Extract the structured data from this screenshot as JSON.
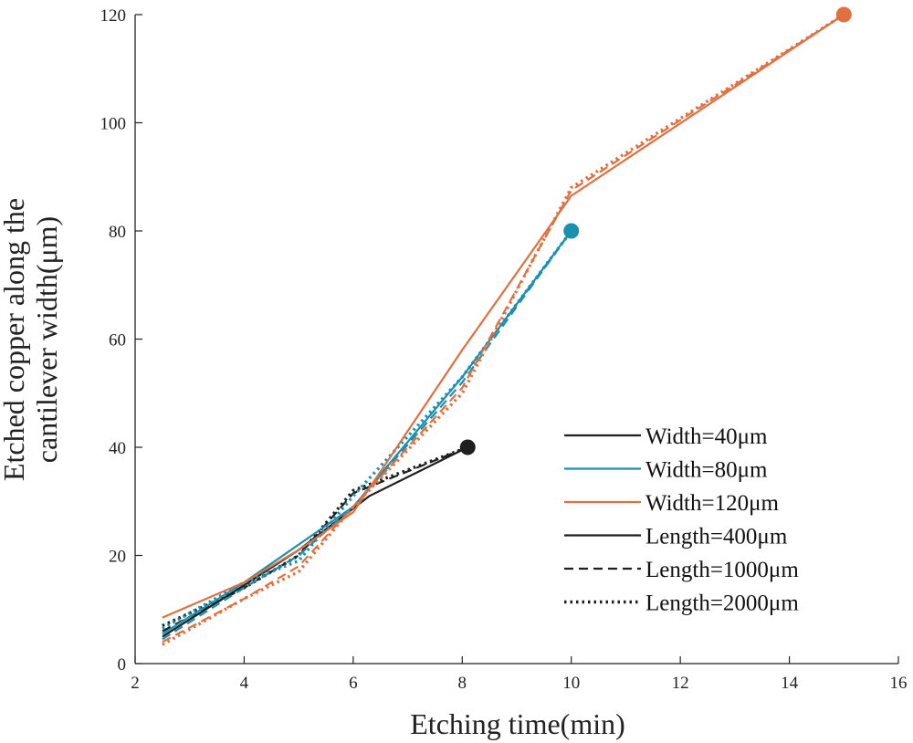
{
  "chart_data": {
    "type": "line",
    "title": "",
    "xlabel": "Etching time(min)",
    "ylabel_lines": [
      "Etched copper along the",
      "cantilever width(μm)"
    ],
    "xlim": [
      2,
      16
    ],
    "ylim": [
      0,
      120
    ],
    "xticks": [
      2,
      4,
      6,
      8,
      10,
      12,
      14,
      16
    ],
    "yticks": [
      0,
      20,
      40,
      60,
      80,
      100,
      120
    ],
    "xtick_labels": [
      "2",
      "4",
      "6",
      "8",
      "10",
      "12",
      "14",
      "16"
    ],
    "ytick_labels": [
      "0",
      "20",
      "40",
      "60",
      "80",
      "100",
      "120"
    ],
    "grid": false,
    "legend_position": "bottom-right",
    "colors": {
      "w40": "#1f1f1f",
      "w80": "#1a8fb0",
      "w120": "#e07040"
    },
    "legend": [
      {
        "label": "Width=40μm",
        "color": "#1f1f1f",
        "dash": "solid"
      },
      {
        "label": "Width=80μm",
        "color": "#1a8fb0",
        "dash": "solid"
      },
      {
        "label": "Width=120μm",
        "color": "#e07040",
        "dash": "solid"
      },
      {
        "label": "Length=400μm",
        "color": "#1f1f1f",
        "dash": "solid"
      },
      {
        "label": "Length=1000μm",
        "color": "#1f1f1f",
        "dash": "dashed"
      },
      {
        "label": "Length=2000μm",
        "color": "#1f1f1f",
        "dash": "dotted"
      }
    ],
    "series": [
      {
        "group": "w40",
        "length": "400",
        "dash": "solid",
        "x": [
          2.5,
          4,
          5,
          6.3,
          8.1
        ],
        "y": [
          5,
          14.5,
          21,
          31,
          40
        ]
      },
      {
        "group": "w40",
        "length": "1000",
        "dash": "dashed",
        "x": [
          2.5,
          4,
          5,
          6,
          8.1
        ],
        "y": [
          6,
          14,
          20,
          31.5,
          40
        ]
      },
      {
        "group": "w40",
        "length": "2000",
        "dash": "dotted",
        "x": [
          2.5,
          4,
          5,
          6,
          8.1
        ],
        "y": [
          7,
          14,
          20,
          32,
          40
        ]
      },
      {
        "group": "w80",
        "length": "400",
        "dash": "solid",
        "x": [
          2.5,
          4,
          5,
          6,
          8,
          10
        ],
        "y": [
          5.5,
          15,
          22,
          29,
          53,
          80
        ]
      },
      {
        "group": "w80",
        "length": "1000",
        "dash": "dashed",
        "x": [
          2.5,
          4,
          5,
          6,
          8,
          10
        ],
        "y": [
          4.5,
          14,
          20,
          29,
          52,
          80
        ]
      },
      {
        "group": "w80",
        "length": "2000",
        "dash": "dotted",
        "x": [
          2.5,
          4,
          5,
          6,
          8,
          10
        ],
        "y": [
          6.5,
          15,
          19,
          31,
          53,
          80
        ]
      },
      {
        "group": "w120",
        "length": "400",
        "dash": "solid",
        "x": [
          2.5,
          4,
          5,
          6,
          8,
          10,
          15
        ],
        "y": [
          8.5,
          15,
          21,
          28,
          58,
          86.5,
          120
        ]
      },
      {
        "group": "w120",
        "length": "1000",
        "dash": "dashed",
        "x": [
          2.5,
          4,
          5,
          6,
          8,
          10,
          15
        ],
        "y": [
          4,
          12,
          18,
          29,
          51,
          87.5,
          120
        ]
      },
      {
        "group": "w120",
        "length": "2000",
        "dash": "dotted",
        "x": [
          2.5,
          4,
          5,
          6,
          8,
          10,
          15
        ],
        "y": [
          3.5,
          12,
          17,
          29,
          50,
          88,
          120
        ]
      }
    ],
    "end_markers": [
      {
        "group": "w40",
        "x": 8.1,
        "y": 40
      },
      {
        "group": "w80",
        "x": 10,
        "y": 80
      },
      {
        "group": "w120",
        "x": 15,
        "y": 120
      }
    ]
  }
}
